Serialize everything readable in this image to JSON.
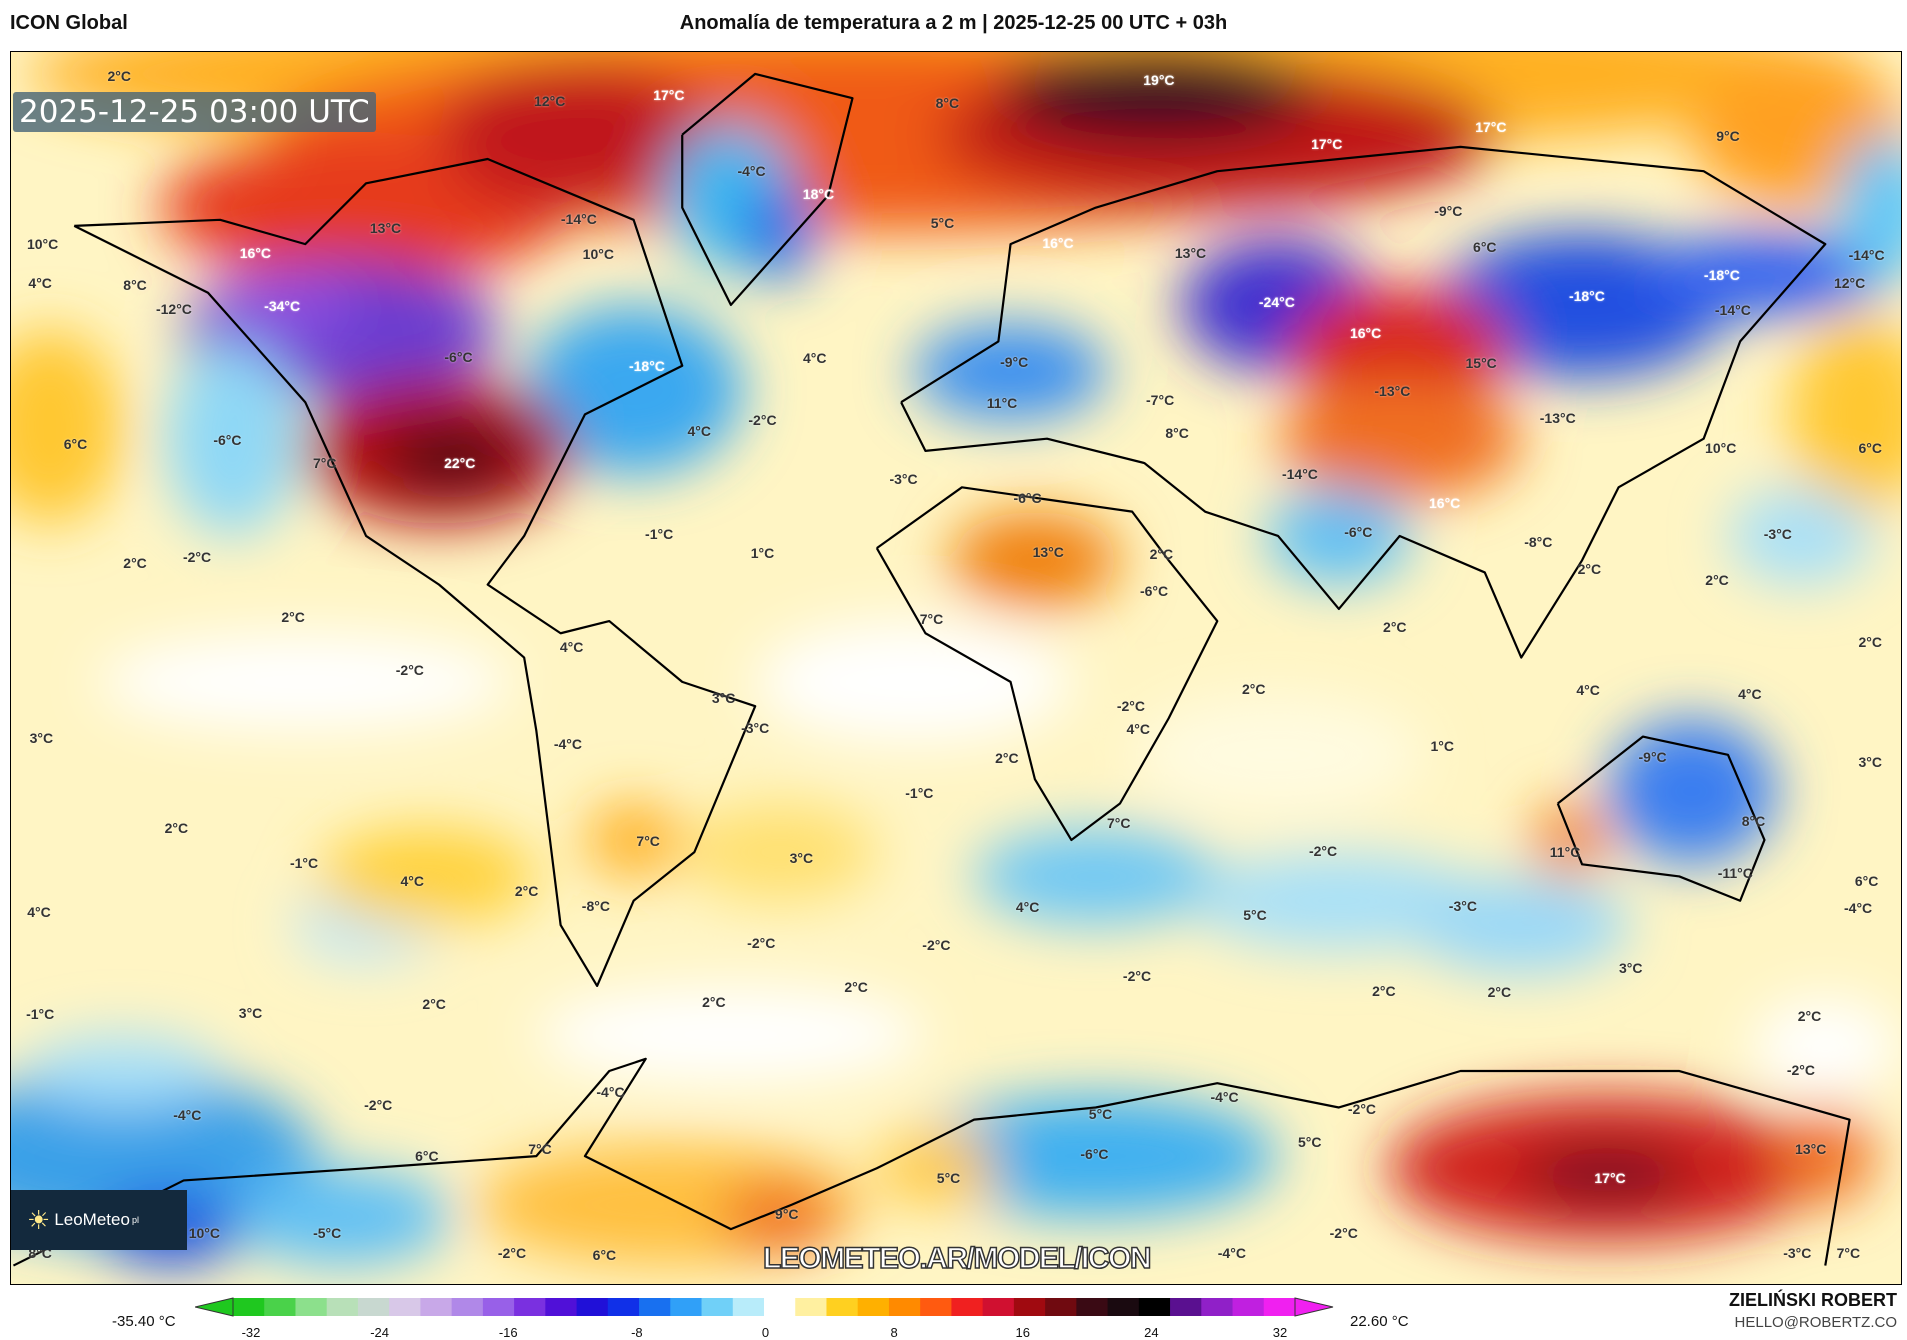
{
  "header": {
    "model": "ICON Global",
    "title": "Anomalía de temperatura a 2 m | 2025-12-25 00 UTC + 03h"
  },
  "map": {
    "timestamp": "2025-12-25 03:00 UTC",
    "watermark": "LEOMETEO.AR/MODEL/ICON",
    "logo": {
      "name": "LeoMeteo",
      "suffix": "pl"
    },
    "labels": [
      "2°C",
      "12°C",
      "17°C",
      "8°C",
      "19°C",
      "17°C",
      "9°C",
      "17°C",
      "-4°C",
      "18°C",
      "-14°C",
      "13°C",
      "5°C",
      "-9°C",
      "10°C",
      "16°C",
      "10°C",
      "16°C",
      "13°C",
      "6°C",
      "-14°C",
      "4°C",
      "8°C",
      "-12°C",
      "-34°C",
      "-18°C",
      "-18°C",
      "12°C",
      "-24°C",
      "16°C",
      "-14°C",
      "-6°C",
      "-18°C",
      "4°C",
      "-9°C",
      "15°C",
      "-13°C",
      "-7°C",
      "-13°C",
      "11°C",
      "-2°C",
      "4°C",
      "6°C",
      "-6°C",
      "7°C",
      "22°C",
      "8°C",
      "10°C",
      "6°C",
      "-3°C",
      "-6°C",
      "-14°C",
      "16°C",
      "-1°C",
      "-6°C",
      "-8°C",
      "-3°C",
      "1°C",
      "2°C",
      "-2°C",
      "2°C",
      "13°C",
      "2°C",
      "-6°C",
      "2°C",
      "2°C",
      "7°C",
      "2°C",
      "4°C",
      "2°C",
      "-2°C",
      "2°C",
      "3°C",
      "-2°C",
      "4°C",
      "4°C",
      "-3°C",
      "3°C",
      "-4°C",
      "4°C",
      "1°C",
      "2°C",
      "-9°C",
      "3°C",
      "-1°C",
      "2°C",
      "7°C",
      "7°C",
      "8°C",
      "-1°C",
      "4°C",
      "3°C",
      "-2°C",
      "11°C",
      "-11°C",
      "4°C",
      "2°C",
      "-8°C",
      "4°C",
      "5°C",
      "-3°C",
      "6°C",
      "-4°C",
      "-2°C",
      "-2°C",
      "2°C",
      "-2°C",
      "3°C",
      "2°C",
      "2°C",
      "-1°C",
      "3°C",
      "2°C",
      "2°C",
      "2°C",
      "-2°C",
      "-2°C",
      "-4°C",
      "-4°C",
      "5°C",
      "-4°C",
      "-2°C",
      "7°C",
      "6°C",
      "-6°C",
      "5°C",
      "13°C",
      "5°C",
      "17°C",
      "9°C",
      "10°C",
      "-5°C",
      "8°C",
      "-2°C",
      "6°C",
      "-4°C",
      "-2°C",
      "-3°C",
      "7°C"
    ]
  },
  "colorbar": {
    "min_label": "-35.40 °C",
    "max_label": "22.60 °C",
    "ticks": [
      "-32",
      "-24",
      "-16",
      "-8",
      "0",
      "8",
      "16",
      "24",
      "32"
    ],
    "colors": [
      "#1fc81f",
      "#4ad24a",
      "#8ce08c",
      "#b8e0b8",
      "#c8d8d0",
      "#d8c8e8",
      "#c8a8e8",
      "#b088e8",
      "#9860e8",
      "#7a30e0",
      "#5010d8",
      "#2010d8",
      "#1030e8",
      "#1870f0",
      "#30a0f8",
      "#70d0f8",
      "#b8ecfa",
      "#ffffff",
      "#fff0a0",
      "#ffd020",
      "#ffb000",
      "#ff8a00",
      "#ff5a10",
      "#f02020",
      "#d01030",
      "#a00a10",
      "#700a10",
      "#3a0a14",
      "#1a0a10",
      "#000000",
      "#5a1090",
      "#9020c8",
      "#c020e0",
      "#f020f0"
    ]
  },
  "credits": {
    "author": "ZIELIŃSKI ROBERT",
    "email": "HELLO@ROBERTZ.CO"
  }
}
